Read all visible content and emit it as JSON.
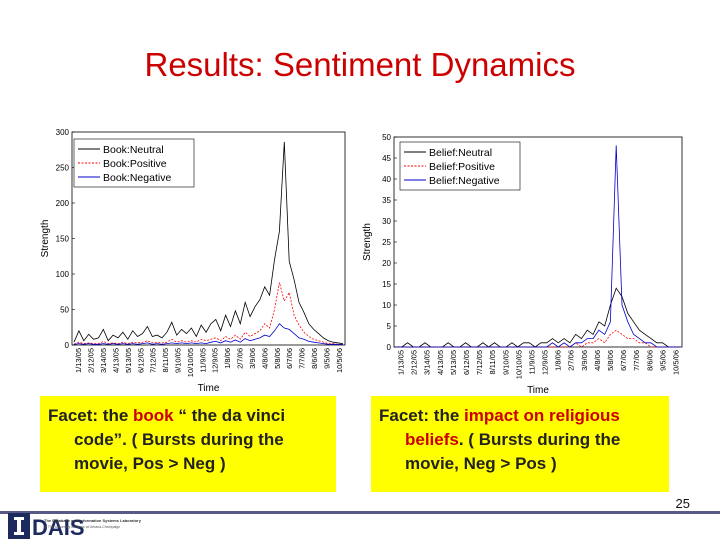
{
  "slide": {
    "title": "Results: Sentiment Dynamics",
    "page_number": "25",
    "accent_color": "#cc0000",
    "facet_background": "#ffff00"
  },
  "facets": [
    {
      "prefix": "Facet: the ",
      "highlight": "book",
      "rest1": " “ the da vinci",
      "line2": "code”. ( Bursts during the",
      "line3": "movie, Pos > Neg )"
    },
    {
      "prefix": "Facet: the ",
      "highlight": "impact on religious",
      "rest1": "",
      "line2_highlight": "beliefs",
      "line2": ". ( Bursts during the",
      "line3": "movie, Neg > Pos )"
    }
  ],
  "logo": {
    "letters": "DAIS",
    "caption_line1": "The Database and Information Systems Laboratory",
    "caption_line2": "at The University of Illinois at Urbana-Champaign"
  },
  "chart_data": [
    {
      "type": "line",
      "xlabel": "Time",
      "ylabel": "Strength",
      "ylim": [
        0,
        300
      ],
      "yticks": [
        0,
        50,
        100,
        150,
        200,
        250,
        300
      ],
      "x_tick_labels": [
        "1/13/05",
        "2/12/05",
        "3/14/05",
        "4/13/05",
        "5/13/05",
        "6/12/05",
        "7/12/05",
        "8/11/05",
        "9/10/05",
        "10/10/05",
        "11/9/05",
        "12/9/05",
        "1/8/06",
        "2/7/06",
        "3/9/06",
        "4/8/06",
        "5/8/06",
        "6/7/06",
        "7/7/06",
        "8/6/06",
        "9/5/06",
        "10/5/06"
      ],
      "legend_position": "top-left",
      "series": [
        {
          "name": "Book:Neutral",
          "color": "#000000",
          "dash": "solid",
          "values": [
            4,
            20,
            6,
            15,
            8,
            10,
            22,
            6,
            14,
            10,
            18,
            8,
            20,
            12,
            16,
            26,
            12,
            14,
            10,
            18,
            32,
            14,
            22,
            16,
            24,
            12,
            28,
            18,
            30,
            36,
            20,
            42,
            26,
            48,
            30,
            60,
            40,
            54,
            64,
            82,
            70,
            120,
            160,
            286,
            118,
            92,
            60,
            46,
            30,
            22,
            16,
            10,
            6,
            4,
            3,
            2
          ]
        },
        {
          "name": "Book:Positive",
          "color": "#ff0000",
          "dash": "dashed",
          "values": [
            1,
            4,
            2,
            3,
            2,
            2,
            5,
            2,
            3,
            2,
            4,
            2,
            4,
            3,
            4,
            6,
            3,
            4,
            3,
            4,
            8,
            4,
            6,
            4,
            6,
            4,
            8,
            6,
            8,
            10,
            6,
            12,
            8,
            14,
            8,
            18,
            12,
            16,
            20,
            30,
            24,
            50,
            88,
            62,
            74,
            42,
            28,
            18,
            12,
            8,
            6,
            4,
            2,
            2,
            1,
            1
          ]
        },
        {
          "name": "Book:Negative",
          "color": "#0000cc",
          "dash": "solid",
          "values": [
            1,
            2,
            1,
            2,
            1,
            1,
            2,
            1,
            2,
            1,
            2,
            1,
            2,
            1,
            2,
            3,
            1,
            2,
            1,
            2,
            3,
            2,
            3,
            2,
            3,
            2,
            3,
            2,
            4,
            5,
            3,
            6,
            4,
            7,
            4,
            9,
            6,
            8,
            10,
            14,
            12,
            20,
            30,
            24,
            22,
            16,
            10,
            8,
            5,
            4,
            3,
            2,
            1,
            1,
            1,
            1
          ]
        }
      ]
    },
    {
      "type": "line",
      "xlabel": "Time",
      "ylabel": "Strength",
      "ylim": [
        0,
        50
      ],
      "yticks": [
        0,
        5,
        10,
        15,
        20,
        25,
        30,
        35,
        40,
        45,
        50
      ],
      "x_tick_labels": [
        "1/13/05",
        "2/12/05",
        "3/14/05",
        "4/13/05",
        "5/13/05",
        "6/12/05",
        "7/12/05",
        "8/11/05",
        "9/10/05",
        "10/10/05",
        "11/9/05",
        "12/9/05",
        "1/8/06",
        "2/7/06",
        "3/9/06",
        "4/8/06",
        "5/8/06",
        "6/7/06",
        "7/7/06",
        "8/6/06",
        "9/5/06",
        "10/5/06"
      ],
      "legend_position": "top-right",
      "series": [
        {
          "name": "Belief:Neutral",
          "color": "#000000",
          "dash": "solid",
          "values": [
            0,
            0,
            1,
            0,
            0,
            1,
            0,
            0,
            0,
            1,
            0,
            0,
            1,
            0,
            0,
            1,
            0,
            1,
            0,
            0,
            1,
            0,
            1,
            1,
            0,
            1,
            1,
            2,
            1,
            2,
            1,
            3,
            2,
            4,
            3,
            6,
            5,
            10,
            14,
            12,
            8,
            6,
            4,
            3,
            2,
            1,
            1,
            0,
            0,
            0
          ]
        },
        {
          "name": "Belief:Positive",
          "color": "#ff0000",
          "dash": "dashed",
          "values": [
            0,
            0,
            0,
            0,
            0,
            0,
            0,
            0,
            0,
            0,
            0,
            0,
            0,
            0,
            0,
            0,
            0,
            0,
            0,
            0,
            0,
            0,
            0,
            0,
            0,
            0,
            0,
            0,
            0,
            0,
            0,
            1,
            0,
            1,
            1,
            2,
            1,
            3,
            4,
            3,
            2,
            2,
            1,
            1,
            0,
            0,
            0,
            0,
            0,
            0
          ]
        },
        {
          "name": "Belief:Negative",
          "color": "#0000cc",
          "dash": "solid",
          "values": [
            0,
            0,
            0,
            0,
            0,
            0,
            0,
            0,
            0,
            0,
            0,
            0,
            0,
            0,
            0,
            0,
            0,
            0,
            0,
            0,
            0,
            0,
            0,
            0,
            0,
            0,
            0,
            1,
            0,
            1,
            0,
            1,
            1,
            2,
            2,
            4,
            3,
            6,
            48,
            10,
            6,
            3,
            2,
            1,
            1,
            0,
            0,
            0,
            0,
            0
          ]
        }
      ]
    }
  ]
}
